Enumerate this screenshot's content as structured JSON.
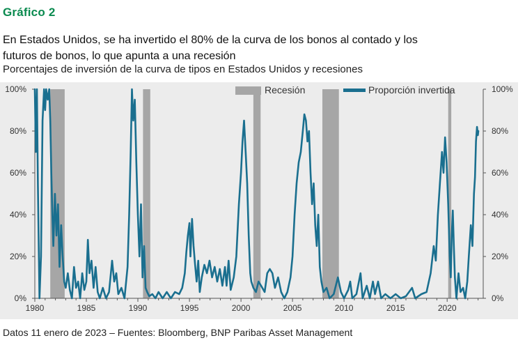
{
  "header": {
    "chart_label": "Gráfico 2",
    "headline": "En Estados Unidos, se ha invertido el 80% de la curva de los bonos al contado y los futuros de bonos, lo que apunta a una recesión",
    "subtitle": "Porcentajes de inversión de la curva de tipos en Estados Unidos y recesiones"
  },
  "footer": {
    "source": "Datos 11 enero de 2023 – Fuentes: Bloomberg, BNP Paribas Asset Management"
  },
  "colors": {
    "label_green": "#0a8a4f",
    "series_teal": "#1a6f8f",
    "recession_gray": "#a6a6a6",
    "plot_background": "#ececec"
  },
  "chart_data": {
    "type": "line",
    "xlim": [
      1980,
      2023.5
    ],
    "ylim": [
      0,
      100
    ],
    "x_ticks": [
      1980,
      1985,
      1990,
      1995,
      2000,
      2005,
      2010,
      2015,
      2020
    ],
    "y_ticks": [
      "0%",
      "20%",
      "40%",
      "60%",
      "80%",
      "100%"
    ],
    "y_tick_values": [
      0,
      20,
      40,
      60,
      80,
      100
    ],
    "legend": {
      "placement": "top-right",
      "recession_label": "Recesión",
      "series_label": "Proporción invertida"
    },
    "recessions": [
      [
        1981.5,
        1982.9
      ],
      [
        1990.5,
        1991.2
      ],
      [
        2001.2,
        2001.9
      ],
      [
        2007.9,
        2009.5
      ],
      [
        2020.1,
        2020.4
      ]
    ],
    "series": [
      {
        "name": "Proporción invertida",
        "color": "#1a6f8f",
        "points": [
          [
            1980.0,
            100
          ],
          [
            1980.1,
            70
          ],
          [
            1980.2,
            100
          ],
          [
            1980.3,
            55
          ],
          [
            1980.45,
            0
          ],
          [
            1980.6,
            20
          ],
          [
            1980.75,
            85
          ],
          [
            1980.9,
            100
          ],
          [
            1981.0,
            90
          ],
          [
            1981.1,
            100
          ],
          [
            1981.25,
            95
          ],
          [
            1981.4,
            100
          ],
          [
            1981.5,
            85
          ],
          [
            1981.6,
            60
          ],
          [
            1981.7,
            40
          ],
          [
            1981.8,
            25
          ],
          [
            1981.95,
            50
          ],
          [
            1982.1,
            30
          ],
          [
            1982.25,
            45
          ],
          [
            1982.4,
            15
          ],
          [
            1982.55,
            35
          ],
          [
            1982.7,
            20
          ],
          [
            1982.85,
            8
          ],
          [
            1983.0,
            5
          ],
          [
            1983.2,
            12
          ],
          [
            1983.4,
            4
          ],
          [
            1983.6,
            0
          ],
          [
            1983.8,
            15
          ],
          [
            1984.0,
            5
          ],
          [
            1984.2,
            8
          ],
          [
            1984.4,
            0
          ],
          [
            1984.6,
            12
          ],
          [
            1984.8,
            4
          ],
          [
            1985.0,
            8
          ],
          [
            1985.15,
            28
          ],
          [
            1985.3,
            12
          ],
          [
            1985.5,
            18
          ],
          [
            1985.7,
            5
          ],
          [
            1985.9,
            15
          ],
          [
            1986.1,
            3
          ],
          [
            1986.3,
            0
          ],
          [
            1986.6,
            5
          ],
          [
            1986.9,
            0
          ],
          [
            1987.2,
            3
          ],
          [
            1987.5,
            18
          ],
          [
            1987.7,
            8
          ],
          [
            1987.9,
            12
          ],
          [
            1988.1,
            2
          ],
          [
            1988.4,
            5
          ],
          [
            1988.7,
            0
          ],
          [
            1989.0,
            15
          ],
          [
            1989.15,
            40
          ],
          [
            1989.3,
            70
          ],
          [
            1989.42,
            100
          ],
          [
            1989.55,
            85
          ],
          [
            1989.7,
            95
          ],
          [
            1989.85,
            65
          ],
          [
            1990.0,
            40
          ],
          [
            1990.15,
            20
          ],
          [
            1990.3,
            45
          ],
          [
            1990.45,
            10
          ],
          [
            1990.6,
            25
          ],
          [
            1990.75,
            5
          ],
          [
            1990.9,
            3
          ],
          [
            1991.1,
            1
          ],
          [
            1991.4,
            2
          ],
          [
            1991.7,
            0
          ],
          [
            1992.0,
            3
          ],
          [
            1992.4,
            0
          ],
          [
            1992.8,
            3
          ],
          [
            1993.2,
            0
          ],
          [
            1993.6,
            3
          ],
          [
            1994.0,
            2
          ],
          [
            1994.3,
            5
          ],
          [
            1994.55,
            12
          ],
          [
            1994.7,
            22
          ],
          [
            1994.85,
            30
          ],
          [
            1995.0,
            36
          ],
          [
            1995.1,
            20
          ],
          [
            1995.25,
            38
          ],
          [
            1995.4,
            25
          ],
          [
            1995.55,
            16
          ],
          [
            1995.7,
            8
          ],
          [
            1995.85,
            18
          ],
          [
            1996.0,
            3
          ],
          [
            1996.2,
            10
          ],
          [
            1996.45,
            16
          ],
          [
            1996.7,
            12
          ],
          [
            1996.95,
            18
          ],
          [
            1997.2,
            10
          ],
          [
            1997.45,
            15
          ],
          [
            1997.7,
            8
          ],
          [
            1997.95,
            14
          ],
          [
            1998.2,
            6
          ],
          [
            1998.45,
            15
          ],
          [
            1998.6,
            6
          ],
          [
            1998.8,
            18
          ],
          [
            1999.0,
            4
          ],
          [
            1999.3,
            10
          ],
          [
            1999.55,
            20
          ],
          [
            1999.8,
            45
          ],
          [
            2000.0,
            60
          ],
          [
            2000.15,
            75
          ],
          [
            2000.3,
            85
          ],
          [
            2000.45,
            70
          ],
          [
            2000.6,
            55
          ],
          [
            2000.75,
            30
          ],
          [
            2000.9,
            12
          ],
          [
            2001.0,
            8
          ],
          [
            2001.2,
            5
          ],
          [
            2001.45,
            3
          ],
          [
            2001.7,
            8
          ],
          [
            2001.95,
            6
          ],
          [
            2002.3,
            3
          ],
          [
            2002.55,
            12
          ],
          [
            2002.8,
            14
          ],
          [
            2003.05,
            12
          ],
          [
            2003.3,
            5
          ],
          [
            2003.6,
            10
          ],
          [
            2003.9,
            3
          ],
          [
            2004.2,
            0
          ],
          [
            2004.5,
            3
          ],
          [
            2004.8,
            10
          ],
          [
            2005.0,
            20
          ],
          [
            2005.2,
            40
          ],
          [
            2005.4,
            55
          ],
          [
            2005.6,
            65
          ],
          [
            2005.8,
            70
          ],
          [
            2006.0,
            80
          ],
          [
            2006.15,
            88
          ],
          [
            2006.3,
            85
          ],
          [
            2006.45,
            75
          ],
          [
            2006.6,
            80
          ],
          [
            2006.75,
            60
          ],
          [
            2006.9,
            45
          ],
          [
            2007.05,
            55
          ],
          [
            2007.2,
            35
          ],
          [
            2007.35,
            25
          ],
          [
            2007.5,
            40
          ],
          [
            2007.65,
            15
          ],
          [
            2007.8,
            8
          ],
          [
            2008.0,
            3
          ],
          [
            2008.3,
            5
          ],
          [
            2008.6,
            0
          ],
          [
            2009.0,
            2
          ],
          [
            2009.4,
            10
          ],
          [
            2009.7,
            3
          ],
          [
            2010.0,
            0
          ],
          [
            2010.4,
            4
          ],
          [
            2010.6,
            8
          ],
          [
            2010.8,
            0
          ],
          [
            2011.2,
            2
          ],
          [
            2011.6,
            12
          ],
          [
            2011.8,
            0
          ],
          [
            2012.2,
            6
          ],
          [
            2012.5,
            0
          ],
          [
            2012.8,
            8
          ],
          [
            2013.0,
            2
          ],
          [
            2013.3,
            8
          ],
          [
            2013.6,
            0
          ],
          [
            2014.0,
            2
          ],
          [
            2014.5,
            0
          ],
          [
            2015.0,
            2
          ],
          [
            2015.5,
            0
          ],
          [
            2016.0,
            1
          ],
          [
            2016.6,
            5
          ],
          [
            2016.9,
            0
          ],
          [
            2017.5,
            2
          ],
          [
            2018.0,
            3
          ],
          [
            2018.4,
            12
          ],
          [
            2018.7,
            25
          ],
          [
            2018.9,
            18
          ],
          [
            2019.1,
            40
          ],
          [
            2019.3,
            55
          ],
          [
            2019.5,
            70
          ],
          [
            2019.65,
            60
          ],
          [
            2019.8,
            77
          ],
          [
            2019.95,
            65
          ],
          [
            2020.1,
            45
          ],
          [
            2020.25,
            20
          ],
          [
            2020.35,
            10
          ],
          [
            2020.45,
            30
          ],
          [
            2020.55,
            42
          ],
          [
            2020.65,
            25
          ],
          [
            2020.75,
            10
          ],
          [
            2020.9,
            0
          ],
          [
            2021.1,
            12
          ],
          [
            2021.3,
            3
          ],
          [
            2021.55,
            5
          ],
          [
            2021.75,
            0
          ],
          [
            2021.95,
            8
          ],
          [
            2022.1,
            20
          ],
          [
            2022.3,
            35
          ],
          [
            2022.45,
            25
          ],
          [
            2022.6,
            50
          ],
          [
            2022.7,
            58
          ],
          [
            2022.8,
            75
          ],
          [
            2022.9,
            82
          ],
          [
            2022.98,
            78
          ],
          [
            2023.03,
            80
          ]
        ]
      }
    ]
  }
}
